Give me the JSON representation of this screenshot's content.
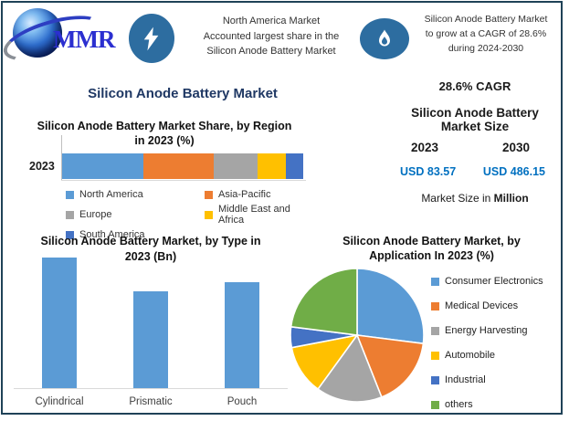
{
  "logo": {
    "text": "MMR"
  },
  "header": {
    "fact1": {
      "icon": "lightning-bolt",
      "lines": [
        "North America Market",
        "Accounted largest share in the",
        "Silicon Anode Battery Market"
      ]
    },
    "fact2": {
      "icon": "flame",
      "lines": [
        "Silicon Anode Battery Market",
        "to grow at a CAGR of 28.6%",
        "during 2024-2030"
      ]
    }
  },
  "main_title": "Silicon Anode Battery Market",
  "stats": {
    "cagr": "28.6% CAGR",
    "size_title": "Silicon Anode Battery Market Size",
    "year_start": "2023",
    "year_end": "2030",
    "value_start": "USD 83.57",
    "value_end": "USD 486.15",
    "note_prefix": "Market Size in ",
    "note_bold": "Million",
    "value_color": "#0070C0"
  },
  "chart_data": [
    {
      "id": "region_share",
      "type": "bar",
      "stacked": true,
      "orientation": "horizontal",
      "title": "Silicon Anode Battery Market Share, by Region in 2023 (%)",
      "categories": [
        "2023"
      ],
      "series": [
        {
          "name": "North America",
          "values": [
            34
          ],
          "color": "#5B9BD5"
        },
        {
          "name": "Asia-Pacific",
          "values": [
            29
          ],
          "color": "#ED7D31"
        },
        {
          "name": "Europe",
          "values": [
            18
          ],
          "color": "#A5A5A5"
        },
        {
          "name": "Middle East and Africa",
          "values": [
            12
          ],
          "color": "#FFC000"
        },
        {
          "name": "South America",
          "values": [
            7
          ],
          "color": "#4472C4"
        }
      ],
      "xlim": [
        0,
        100
      ],
      "legend_position": "bottom",
      "grid": false
    },
    {
      "id": "by_type",
      "type": "bar",
      "title": "Silicon Anode Battery Market, by Type in 2023 (Bn)",
      "categories": [
        "Cylindrical",
        "Prismatic",
        "Pouch"
      ],
      "values": [
        1.0,
        0.74,
        0.81
      ],
      "ylabel": "",
      "ylim": [
        0,
        1.0
      ],
      "color": "#5B9BD5",
      "grid": false,
      "note": "axis unlabeled; values are relative bar heights"
    },
    {
      "id": "by_application",
      "type": "pie",
      "title": "Silicon Anode Battery Market, by Application In 2023 (%)",
      "labels": [
        "Consumer Electronics",
        "Medical Devices",
        "Energy Harvesting",
        "Automobile",
        "Industrial",
        "others"
      ],
      "values": [
        27,
        17,
        16,
        12,
        5,
        23
      ],
      "colors": [
        "#5B9BD5",
        "#ED7D31",
        "#A5A5A5",
        "#FFC000",
        "#4472C4",
        "#70AD47"
      ],
      "legend_position": "right"
    }
  ]
}
